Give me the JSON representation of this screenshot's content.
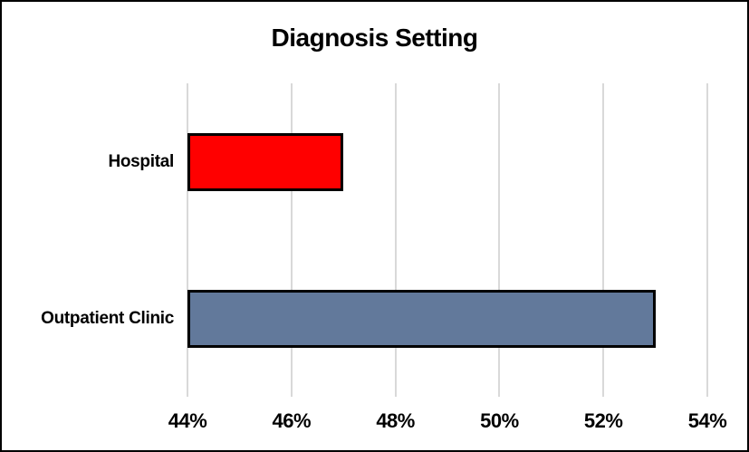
{
  "window": {
    "background": "#FFFFFF",
    "frame_border_color": "#000000"
  },
  "chart_data": {
    "type": "bar",
    "orientation": "horizontal",
    "title": "Diagnosis Setting",
    "categories": [
      "Hospital",
      "Outpatient Clinic"
    ],
    "values": [
      47,
      53
    ],
    "value_unit": "%",
    "bar_colors": [
      "#FF0000",
      "#62799B"
    ],
    "bar_border_color": "#000000",
    "xlim": [
      44,
      54
    ],
    "x_tick_values": [
      44,
      46,
      48,
      50,
      52,
      54
    ],
    "x_tick_labels": [
      "44%",
      "46%",
      "48%",
      "50%",
      "52%",
      "54%"
    ],
    "gridlines": true,
    "gridline_color": "#D9D9D9",
    "legend": "none",
    "text_color": "#000000"
  }
}
